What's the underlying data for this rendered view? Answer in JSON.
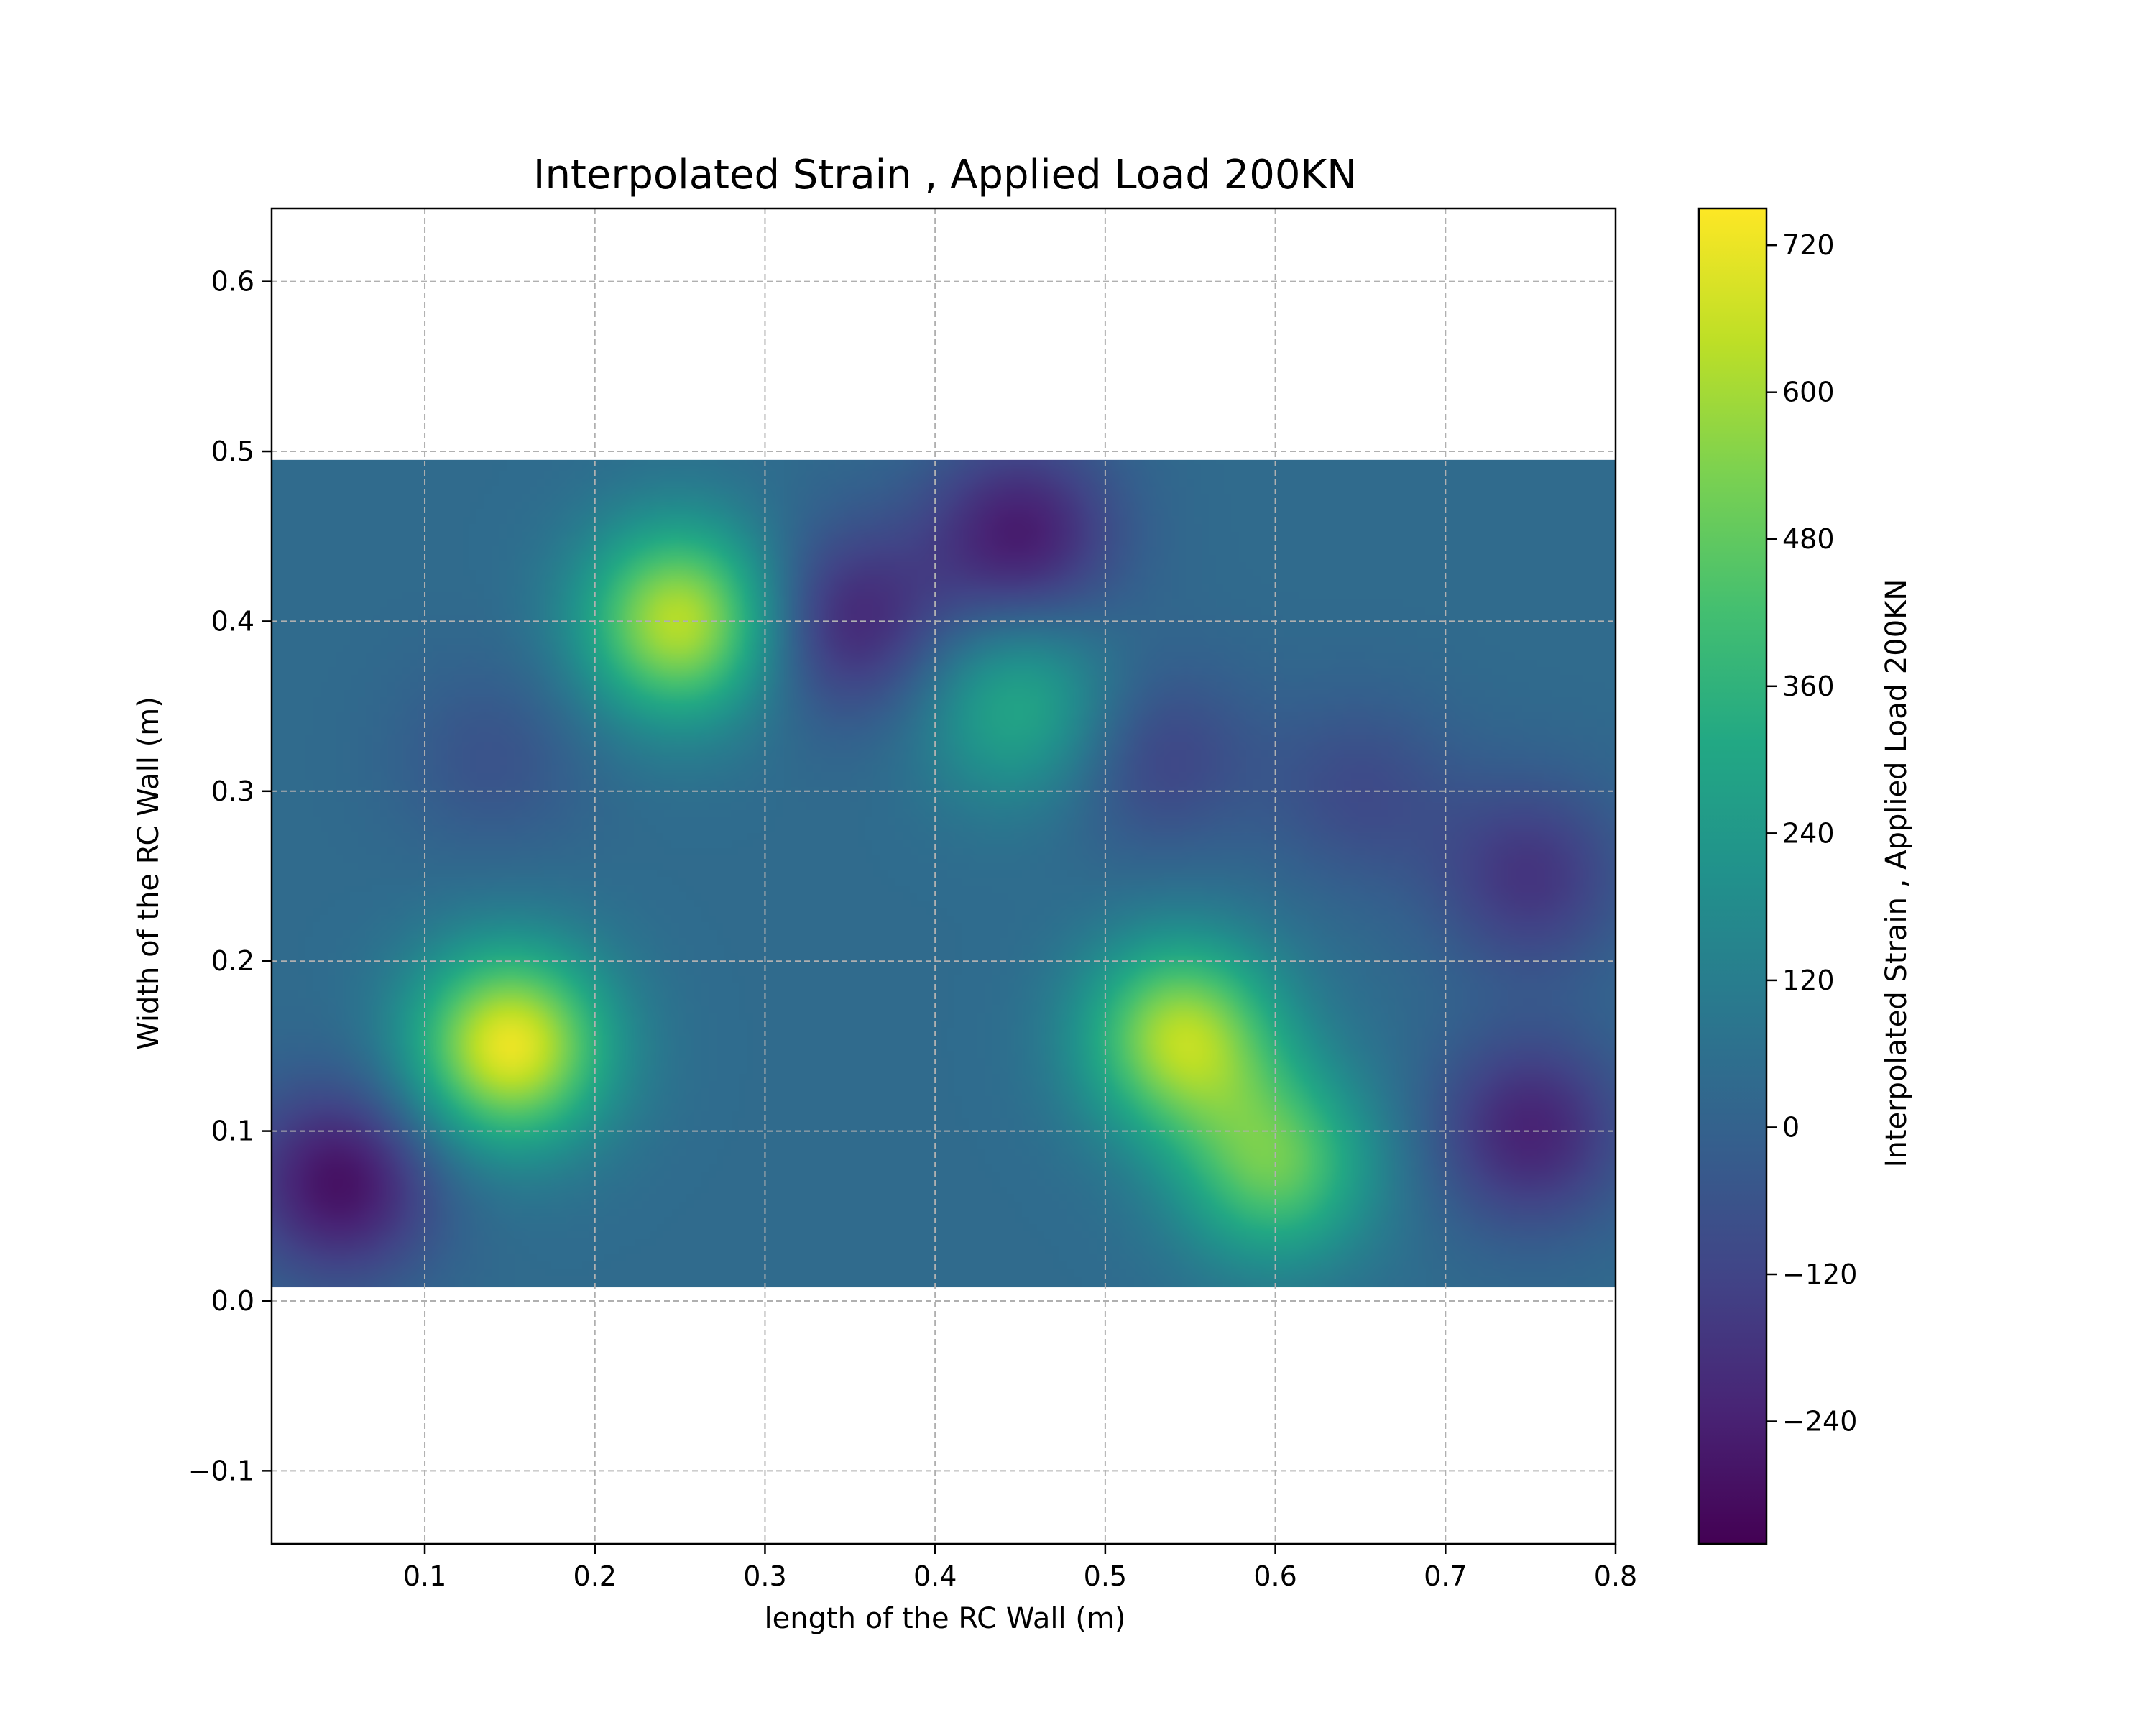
{
  "chart_data": {
    "type": "heatmap",
    "title": "Interpolated Strain ,  Applied Load 200KN",
    "xlabel": "length of the RC Wall (m)",
    "ylabel": "Width of the RC Wall (m)",
    "colorbar_label": "Interpolated Strain ,  Applied Load 200KN",
    "colormap": "viridis",
    "grid": true,
    "xlim": [
      0.01,
      0.8
    ],
    "ylim": [
      -0.143,
      0.643
    ],
    "x_ticks": [
      {
        "value": 0.1,
        "label": "0.1"
      },
      {
        "value": 0.2,
        "label": "0.2"
      },
      {
        "value": 0.3,
        "label": "0.3"
      },
      {
        "value": 0.4,
        "label": "0.4"
      },
      {
        "value": 0.5,
        "label": "0.5"
      },
      {
        "value": 0.6,
        "label": "0.6"
      },
      {
        "value": 0.7,
        "label": "0.7"
      },
      {
        "value": 0.8,
        "label": "0.8"
      }
    ],
    "y_ticks": [
      {
        "value": -0.1,
        "label": "−0.1"
      },
      {
        "value": 0.0,
        "label": "0.0"
      },
      {
        "value": 0.1,
        "label": "0.1"
      },
      {
        "value": 0.2,
        "label": "0.2"
      },
      {
        "value": 0.3,
        "label": "0.3"
      },
      {
        "value": 0.4,
        "label": "0.4"
      },
      {
        "value": 0.5,
        "label": "0.5"
      },
      {
        "value": 0.6,
        "label": "0.6"
      }
    ],
    "colorbar_range": [
      -340,
      750
    ],
    "colorbar_ticks": [
      {
        "value": 720,
        "label": "720"
      },
      {
        "value": 600,
        "label": "600"
      },
      {
        "value": 480,
        "label": "480"
      },
      {
        "value": 360,
        "label": "360"
      },
      {
        "value": 240,
        "label": "240"
      },
      {
        "value": 120,
        "label": "120"
      },
      {
        "value": 0,
        "label": "0"
      },
      {
        "value": -120,
        "label": "−120"
      },
      {
        "value": -240,
        "label": "−240"
      }
    ],
    "data_extent": {
      "x": [
        0.01,
        0.8
      ],
      "y": [
        0.008,
        0.495
      ]
    },
    "background_value": 40,
    "hotspots": [
      {
        "x": 0.15,
        "y": 0.15,
        "value": 720
      },
      {
        "x": 0.25,
        "y": 0.4,
        "value": 640
      },
      {
        "x": 0.545,
        "y": 0.155,
        "value": 620
      },
      {
        "x": 0.6,
        "y": 0.08,
        "value": 480
      },
      {
        "x": 0.45,
        "y": 0.35,
        "value": 320
      },
      {
        "x": 0.05,
        "y": 0.07,
        "value": -290
      },
      {
        "x": 0.45,
        "y": 0.45,
        "value": -260
      },
      {
        "x": 0.35,
        "y": 0.4,
        "value": -220
      },
      {
        "x": 0.75,
        "y": 0.1,
        "value": -230
      },
      {
        "x": 0.75,
        "y": 0.25,
        "value": -170
      },
      {
        "x": 0.53,
        "y": 0.32,
        "value": -120
      },
      {
        "x": 0.65,
        "y": 0.3,
        "value": -90
      },
      {
        "x": 0.14,
        "y": 0.32,
        "value": -60
      }
    ]
  }
}
